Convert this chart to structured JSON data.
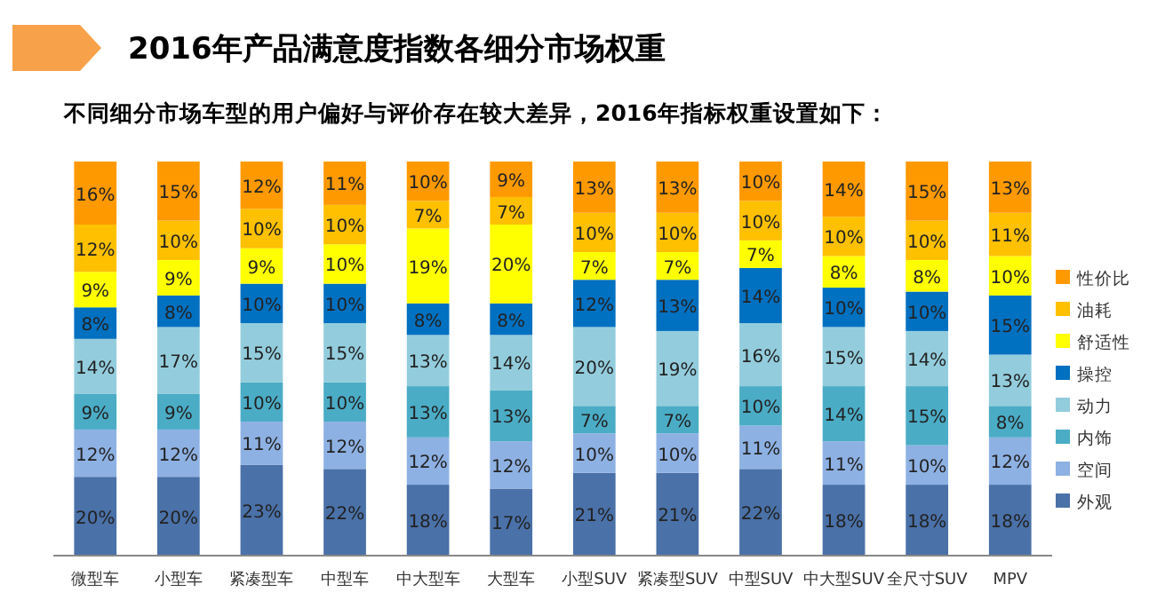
{
  "chart_data": {
    "type": "bar",
    "stacked": true,
    "title": "2016年产品满意度指数各细分市场权重",
    "subtitle": "不同细分市场车型的用户偏好与评价存在较大差异，2016年指标权重设置如下：",
    "categories": [
      "微型车",
      "小型车",
      "紧凑型车",
      "中型车",
      "中大型车",
      "大型车",
      "小型SUV",
      "紧凑型SUV",
      "中型SUV",
      "中大型SUV",
      "全尺寸SUV",
      "MPV"
    ],
    "legend": "right",
    "series": [
      {
        "name": "外观",
        "color": "#4a71a8",
        "values": [
          20,
          20,
          23,
          22,
          18,
          17,
          21,
          21,
          22,
          18,
          18,
          18
        ],
        "value_labels": [
          "20%",
          "20%",
          "23%",
          "22%",
          "18%",
          "17%",
          "21%",
          "21%",
          "22%",
          "18%",
          "18%",
          "18%"
        ]
      },
      {
        "name": "空间",
        "color": "#8eb1e3",
        "values": [
          12,
          12,
          11,
          12,
          12,
          12,
          10,
          10,
          11,
          11,
          10,
          12
        ],
        "value_labels": [
          "12%",
          "12%",
          "11%",
          "12%",
          "12%",
          "12%",
          "10%",
          "10%",
          "11%",
          "11%",
          "10%",
          "12%"
        ]
      },
      {
        "name": "内饰",
        "color": "#4bacc6",
        "values": [
          9,
          9,
          10,
          10,
          13,
          13,
          7,
          7,
          10,
          14,
          15,
          8
        ],
        "value_labels": [
          "9%",
          "9%",
          "10%",
          "10%",
          "13%",
          "13%",
          "7%",
          "7%",
          "10%",
          "14%",
          "15%",
          "8%"
        ]
      },
      {
        "name": "动力",
        "color": "#93cddd",
        "values": [
          14,
          17,
          15,
          15,
          13,
          14,
          20,
          19,
          16,
          15,
          14,
          13
        ],
        "value_labels": [
          "14%",
          "17%",
          "15%",
          "15%",
          "13%",
          "14%",
          "20%",
          "19%",
          "16%",
          "15%",
          "14%",
          "13%"
        ]
      },
      {
        "name": "操控",
        "color": "#0070c0",
        "values": [
          8,
          8,
          10,
          10,
          8,
          8,
          12,
          13,
          14,
          10,
          10,
          15
        ],
        "value_labels": [
          "8%",
          "8%",
          "10%",
          "10%",
          "8%",
          "8%",
          "12%",
          "13%",
          "14%",
          "10%",
          "10%",
          "15%"
        ]
      },
      {
        "name": "舒适性",
        "color": "#ffff00",
        "values": [
          9,
          9,
          9,
          10,
          19,
          20,
          7,
          7,
          7,
          8,
          8,
          10
        ],
        "value_labels": [
          "9%",
          "9%",
          "9%",
          "10%",
          "19%",
          "20%",
          "7%",
          "7%",
          "7%",
          "8%",
          "8%",
          "10%"
        ]
      },
      {
        "name": "油耗",
        "color": "#ffc000",
        "values": [
          12,
          10,
          10,
          10,
          7,
          7,
          10,
          10,
          10,
          10,
          10,
          11
        ],
        "value_labels": [
          "12%",
          "10%",
          "10%",
          "10%",
          "7%",
          "7%",
          "10%",
          "10%",
          "10%",
          "10%",
          "10%",
          "11%"
        ]
      },
      {
        "name": "性价比",
        "color": "#ff9900",
        "values": [
          16,
          15,
          12,
          11,
          10,
          9,
          13,
          13,
          10,
          14,
          15,
          13
        ],
        "value_labels": [
          "16%",
          "15%",
          "12%",
          "11%",
          "10%",
          "9%",
          "13%",
          "13%",
          "10%",
          "14%",
          "15%",
          "13%"
        ]
      }
    ]
  }
}
